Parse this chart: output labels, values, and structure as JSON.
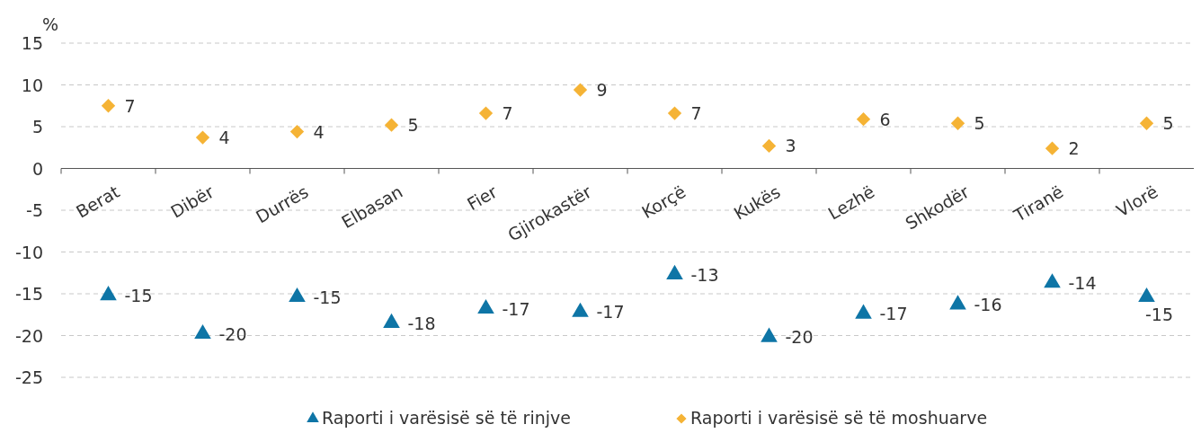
{
  "chart_data": {
    "type": "scatter",
    "ylabel": "%",
    "categories": [
      "Berat",
      "Dibër",
      "Durrës",
      "Elbasan",
      "Fier",
      "Gjirokastër",
      "Korçë",
      "Kukës",
      "Lezhë",
      "Shkodër",
      "Tiranë",
      "Vlorë"
    ],
    "series": [
      {
        "name": "Raporti i varësisë së të rinjve",
        "color": "#0e75a6",
        "marker": "triangle",
        "values": [
          -15.2,
          -19.8,
          -15.4,
          -18.5,
          -16.8,
          -17.2,
          -12.7,
          -20.2,
          -17.4,
          -16.3,
          -13.7,
          -15.4
        ],
        "value_labels": [
          "-15",
          "-20",
          "-15",
          "-18",
          "-17",
          "-17",
          "-13",
          "-20",
          "-17",
          "-16",
          "-14",
          "-15"
        ]
      },
      {
        "name": "Raporti i varësisë së të moshuarve",
        "color": "#f5b335",
        "marker": "diamond",
        "values": [
          7.5,
          3.7,
          4.4,
          5.2,
          6.6,
          9.4,
          6.6,
          2.7,
          5.9,
          5.4,
          2.4,
          5.4
        ],
        "value_labels": [
          "7",
          "4",
          "4",
          "5",
          "7",
          "9",
          "7",
          "3",
          "6",
          "5",
          "2",
          "5"
        ]
      }
    ],
    "ylim": [
      -25,
      15
    ],
    "yticks": [
      -25,
      -20,
      -15,
      -10,
      -5,
      0,
      5,
      10,
      15
    ],
    "grid": "y",
    "legend": "bottom"
  }
}
